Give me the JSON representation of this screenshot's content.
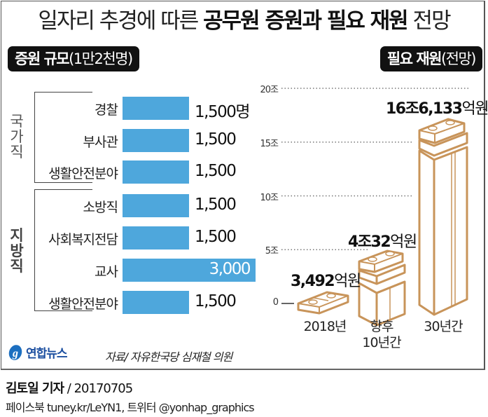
{
  "title": {
    "part1": "일자리 추경에 따른 ",
    "part2": "공무원 증원과 필요 재원",
    "part3": " 전망"
  },
  "left_panel": {
    "header_bold": "증원 규모",
    "header_light": "(1만2천명)",
    "groups": [
      {
        "label": "국가직",
        "chars": [
          "국",
          "가",
          "직"
        ]
      },
      {
        "label": "지방직",
        "chars": [
          "지",
          "방",
          "직"
        ]
      }
    ]
  },
  "right_panel": {
    "header_bold": "필요 재원",
    "header_light": "(전망)"
  },
  "chart_data": [
    {
      "type": "bar",
      "orientation": "horizontal",
      "title": "증원 규모(1만2천명)",
      "unit": "명",
      "categories": [
        "경찰",
        "부사관",
        "생활안전분야",
        "소방직",
        "사회복지전담",
        "교사",
        "생활안전분야"
      ],
      "groups": [
        "국가직",
        "국가직",
        "국가직",
        "지방직",
        "지방직",
        "지방직",
        "지방직"
      ],
      "values": [
        1500,
        1500,
        1500,
        1500,
        1500,
        3000,
        1500
      ],
      "value_labels": [
        "1,500명",
        "1,500",
        "1,500",
        "1,500",
        "1,500",
        "3,000",
        "1,500"
      ],
      "xlim": [
        0,
        3000
      ],
      "bar_color": "#4ea7dc"
    },
    {
      "type": "bar",
      "orientation": "vertical",
      "title": "필요 재원(전망)",
      "unit": "조원",
      "categories": [
        "2018년",
        "향후 10년간",
        "30년간"
      ],
      "category_lines": [
        [
          "2018년"
        ],
        [
          "향후",
          "10년간"
        ],
        [
          "30년간"
        ]
      ],
      "values": [
        0.3492,
        4.0032,
        16.6133
      ],
      "value_labels": [
        {
          "num": "3,492",
          "unit": "억원"
        },
        {
          "num": "4조32",
          "unit": "억원"
        },
        {
          "num": "16조6,133",
          "unit": "억원"
        }
      ],
      "ylim": [
        0,
        20
      ],
      "yticks": [
        0,
        5,
        10,
        15,
        20
      ],
      "ytick_labels": [
        "0",
        "5조",
        "10조",
        "15조",
        "20조"
      ],
      "grid": true,
      "mark_color": "#c8945a"
    }
  ],
  "footer": {
    "logo": "연합뉴스",
    "source": "자료/ 자유한국당 심재철 의원",
    "reporter": "김토일 기자",
    "date": " / 20170705",
    "social": "페이스북 tuney.kr/LeYN1, 트위터 @yonhap_graphics"
  }
}
